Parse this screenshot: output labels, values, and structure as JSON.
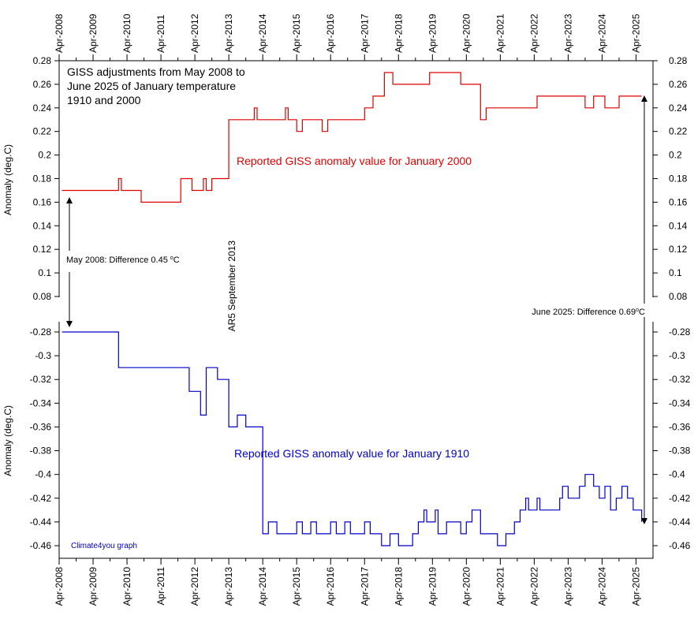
{
  "chart_data": {
    "type": "line",
    "title": "GISS adjustments from May 2008 to\nJune 2025 of January temperature\n1910 and 2000",
    "credit": "Climate4you graph",
    "x_ticks": [
      "Apr-2008",
      "Apr-2009",
      "Apr-2010",
      "Apr-2011",
      "Apr-2012",
      "Apr-2013",
      "Apr-2014",
      "Apr-2015",
      "Apr-2016",
      "Apr-2017",
      "Apr-2018",
      "Apr-2019",
      "Apr-2020",
      "Apr-2021",
      "Apr-2022",
      "Apr-2023",
      "Apr-2024",
      "Apr-2025"
    ],
    "xlim": [
      "2008-04",
      "2025-10"
    ],
    "panels": [
      {
        "ylabel": "Anomaly (deg.C)",
        "ylim": [
          0.08,
          0.28
        ],
        "y_ticks": [
          "0.28",
          "0.26",
          "0.24",
          "0.22",
          "0.2",
          "0.18",
          "0.16",
          "0.14",
          "0.12",
          "0.1",
          "0.08"
        ],
        "series": [
          {
            "name": "Reported GISS anomaly value for January 2000",
            "color": "#e00000",
            "step": "post",
            "points": [
              [
                "2008-05",
                0.17
              ],
              [
                "2010-01",
                0.18
              ],
              [
                "2010-02",
                0.17
              ],
              [
                "2010-09",
                0.16
              ],
              [
                "2011-11",
                0.18
              ],
              [
                "2012-03",
                0.17
              ],
              [
                "2012-07",
                0.18
              ],
              [
                "2012-08",
                0.17
              ],
              [
                "2012-10",
                0.18
              ],
              [
                "2013-04",
                0.23
              ],
              [
                "2014-01",
                0.24
              ],
              [
                "2014-02",
                0.23
              ],
              [
                "2014-12",
                0.24
              ],
              [
                "2015-01",
                0.23
              ],
              [
                "2015-04",
                0.22
              ],
              [
                "2015-06",
                0.23
              ],
              [
                "2016-01",
                0.22
              ],
              [
                "2016-03",
                0.23
              ],
              [
                "2016-09",
                0.23
              ],
              [
                "2017-04",
                0.24
              ],
              [
                "2017-07",
                0.25
              ],
              [
                "2017-11",
                0.27
              ],
              [
                "2018-02",
                0.26
              ],
              [
                "2019-01",
                0.26
              ],
              [
                "2019-03",
                0.27
              ],
              [
                "2020-02",
                0.26
              ],
              [
                "2020-09",
                0.23
              ],
              [
                "2020-11",
                0.24
              ],
              [
                "2022-02",
                0.24
              ],
              [
                "2022-05",
                0.25
              ],
              [
                "2022-10",
                0.25
              ],
              [
                "2023-03",
                0.25
              ],
              [
                "2023-10",
                0.24
              ],
              [
                "2024-01",
                0.25
              ],
              [
                "2024-05",
                0.24
              ],
              [
                "2024-10",
                0.25
              ],
              [
                "2025-06",
                0.25
              ]
            ]
          }
        ],
        "annotations": [
          {
            "text": "Reported GISS anomaly value for January 2000",
            "color": "#e00000"
          }
        ]
      },
      {
        "ylabel": "Anomaly (deg.C)",
        "ylim": [
          -0.47,
          -0.27
        ],
        "y_ticks": [
          "-0.28",
          "-0.3",
          "-0.32",
          "-0.34",
          "-0.36",
          "-0.38",
          "-0.4",
          "-0.42",
          "-0.44",
          "-0.46"
        ],
        "series": [
          {
            "name": "Reported GISS anomaly value for January 1910",
            "color": "#0000c8",
            "step": "post",
            "points": [
              [
                "2008-05",
                -0.28
              ],
              [
                "2010-01",
                -0.31
              ],
              [
                "2012-02",
                -0.33
              ],
              [
                "2012-06",
                -0.35
              ],
              [
                "2012-08",
                -0.31
              ],
              [
                "2012-12",
                -0.32
              ],
              [
                "2013-04",
                -0.36
              ],
              [
                "2013-07",
                -0.35
              ],
              [
                "2013-10",
                -0.36
              ],
              [
                "2014-04",
                -0.45
              ],
              [
                "2014-06",
                -0.44
              ],
              [
                "2014-09",
                -0.45
              ],
              [
                "2015-04",
                -0.44
              ],
              [
                "2015-06",
                -0.45
              ],
              [
                "2015-09",
                -0.44
              ],
              [
                "2015-11",
                -0.45
              ],
              [
                "2016-04",
                -0.44
              ],
              [
                "2016-06",
                -0.45
              ],
              [
                "2016-09",
                -0.44
              ],
              [
                "2016-11",
                -0.45
              ],
              [
                "2017-04",
                -0.44
              ],
              [
                "2017-06",
                -0.45
              ],
              [
                "2017-10",
                -0.46
              ],
              [
                "2018-01",
                -0.45
              ],
              [
                "2018-04",
                -0.46
              ],
              [
                "2018-09",
                -0.45
              ],
              [
                "2018-11",
                -0.44
              ],
              [
                "2019-01",
                -0.43
              ],
              [
                "2019-02",
                -0.44
              ],
              [
                "2019-05",
                -0.43
              ],
              [
                "2019-06",
                -0.45
              ],
              [
                "2019-09",
                -0.44
              ],
              [
                "2020-02",
                -0.45
              ],
              [
                "2020-04",
                -0.44
              ],
              [
                "2020-06",
                -0.43
              ],
              [
                "2020-09",
                -0.45
              ],
              [
                "2021-01",
                -0.45
              ],
              [
                "2021-03",
                -0.46
              ],
              [
                "2021-06",
                -0.45
              ],
              [
                "2021-09",
                -0.44
              ],
              [
                "2021-11",
                -0.43
              ],
              [
                "2022-01",
                -0.42
              ],
              [
                "2022-02",
                -0.43
              ],
              [
                "2022-05",
                -0.42
              ],
              [
                "2022-06",
                -0.43
              ],
              [
                "2023-01",
                -0.42
              ],
              [
                "2023-02",
                -0.41
              ],
              [
                "2023-04",
                -0.42
              ],
              [
                "2023-08",
                -0.41
              ],
              [
                "2023-10",
                -0.4
              ],
              [
                "2024-01",
                -0.41
              ],
              [
                "2024-03",
                -0.42
              ],
              [
                "2024-05",
                -0.41
              ],
              [
                "2024-07",
                -0.43
              ],
              [
                "2024-09",
                -0.42
              ],
              [
                "2024-11",
                -0.41
              ],
              [
                "2025-01",
                -0.42
              ],
              [
                "2025-03",
                -0.43
              ],
              [
                "2025-06",
                -0.44
              ]
            ]
          }
        ],
        "annotations": [
          {
            "text": "Reported GISS anomaly value for January 1910",
            "color": "#0000c8"
          }
        ]
      }
    ],
    "event_label": "AR5 September 2013",
    "difference_labels": [
      {
        "prefix": "May 2008: Difference 0.45 ",
        "unit_sup": "o",
        "unit": "C"
      },
      {
        "prefix": "June 2025: Difference 0.69",
        "unit_sup": "o",
        "unit": "C"
      }
    ]
  }
}
